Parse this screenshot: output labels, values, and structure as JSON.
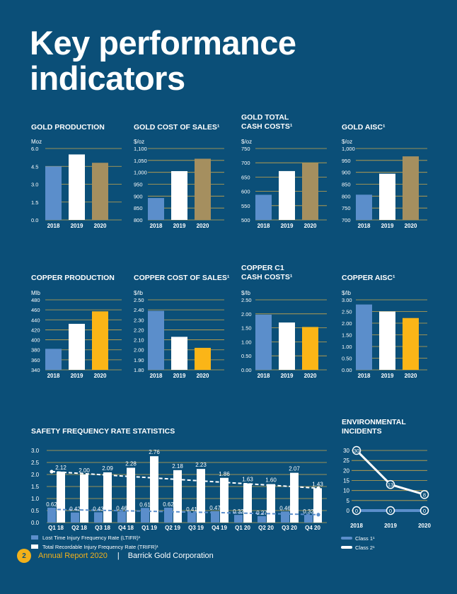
{
  "page": {
    "title_line1": "Key performance",
    "title_line2": "indicators"
  },
  "footer": {
    "page_number": "2",
    "report": "Annual Report 2020",
    "separator": "|",
    "company": "Barrick Gold Corporation"
  },
  "colors": {
    "background": "#0b4f78",
    "blue": "#5b8ecb",
    "white": "#ffffff",
    "gold_khaki": "#a58f5f",
    "copper_yellow": "#fbb517",
    "grid": "#c9a64b"
  },
  "chart_data": [
    {
      "id": "gold-production",
      "type": "bar",
      "title_lines": [
        "GOLD PRODUCTION"
      ],
      "unit": "Moz",
      "categories": [
        "2018",
        "2019",
        "2020"
      ],
      "values": [
        4.5,
        5.5,
        4.8
      ],
      "ylim": [
        0,
        6
      ],
      "ticks": [
        "6.0",
        "4.5",
        "3.0",
        "1.5",
        "0.0"
      ],
      "colors": [
        "#5b8ecb",
        "#ffffff",
        "#a58f5f"
      ]
    },
    {
      "id": "gold-cost-of-sales",
      "type": "bar",
      "title_lines": [
        "GOLD COST OF SALES¹"
      ],
      "unit": "$/oz",
      "categories": [
        "2018",
        "2019",
        "2020"
      ],
      "values": [
        892,
        1005,
        1057
      ],
      "ylim": [
        800,
        1100
      ],
      "ticks": [
        "1,100",
        "1,050",
        "1,000",
        "950",
        "900",
        "850",
        "800"
      ],
      "colors": [
        "#5b8ecb",
        "#ffffff",
        "#a58f5f"
      ]
    },
    {
      "id": "gold-total-cash-costs",
      "type": "bar",
      "title_lines": [
        "GOLD TOTAL",
        "CASH COSTS¹"
      ],
      "unit": "$/oz",
      "categories": [
        "2018",
        "2019",
        "2020"
      ],
      "values": [
        588,
        671,
        699
      ],
      "ylim": [
        500,
        750
      ],
      "ticks": [
        "750",
        "700",
        "650",
        "600",
        "550",
        "500"
      ],
      "colors": [
        "#5b8ecb",
        "#ffffff",
        "#a58f5f"
      ]
    },
    {
      "id": "gold-aisc",
      "type": "bar",
      "title_lines": [
        "GOLD AISC¹"
      ],
      "unit": "$/oz",
      "categories": [
        "2018",
        "2019",
        "2020"
      ],
      "values": [
        806,
        894,
        967
      ],
      "ylim": [
        700,
        1000
      ],
      "ticks": [
        "1,000",
        "950",
        "900",
        "850",
        "800",
        "750",
        "700"
      ],
      "colors": [
        "#5b8ecb",
        "#ffffff",
        "#a58f5f"
      ]
    },
    {
      "id": "copper-production",
      "type": "bar",
      "title_lines": [
        "COPPER PRODUCTION"
      ],
      "unit": "Mlb",
      "categories": [
        "2018",
        "2019",
        "2020"
      ],
      "values": [
        382,
        432,
        457
      ],
      "ylim": [
        340,
        480
      ],
      "ticks": [
        "480",
        "460",
        "440",
        "420",
        "400",
        "380",
        "360",
        "340"
      ],
      "colors": [
        "#5b8ecb",
        "#ffffff",
        "#fbb517"
      ]
    },
    {
      "id": "copper-cost-of-sales",
      "type": "bar",
      "title_lines": [
        "COPPER COST OF SALES¹"
      ],
      "unit": "$/lb",
      "categories": [
        "2018",
        "2019",
        "2020"
      ],
      "values": [
        2.39,
        2.13,
        2.02
      ],
      "ylim": [
        1.8,
        2.5
      ],
      "ticks": [
        "2.50",
        "2.40",
        "2.30",
        "2.20",
        "2.10",
        "2.00",
        "1.90",
        "1.80"
      ],
      "colors": [
        "#5b8ecb",
        "#ffffff",
        "#fbb517"
      ]
    },
    {
      "id": "copper-c1-cash-costs",
      "type": "bar",
      "title_lines": [
        "COPPER C1",
        "CASH COSTS¹"
      ],
      "unit": "$/lb",
      "categories": [
        "2018",
        "2019",
        "2020"
      ],
      "values": [
        1.97,
        1.69,
        1.53
      ],
      "ylim": [
        0,
        2.5
      ],
      "ticks": [
        "2.50",
        "2.00",
        "1.50",
        "1.00",
        "0.50",
        "0.00"
      ],
      "colors": [
        "#5b8ecb",
        "#ffffff",
        "#fbb517"
      ]
    },
    {
      "id": "copper-aisc",
      "type": "bar",
      "title_lines": [
        "COPPER AISC¹"
      ],
      "unit": "$/lb",
      "categories": [
        "2018",
        "2019",
        "2020"
      ],
      "values": [
        2.8,
        2.5,
        2.22
      ],
      "ylim": [
        0,
        3
      ],
      "ticks": [
        "3.00",
        "2.50",
        "2.00",
        "1.50",
        "1.00",
        "0.50",
        "0.00"
      ],
      "colors": [
        "#5b8ecb",
        "#ffffff",
        "#fbb517"
      ]
    },
    {
      "id": "safety",
      "type": "bar+line",
      "title": "SAFETY FREQUENCY RATE STATISTICS",
      "categories": [
        "Q1 18",
        "Q2 18",
        "Q3 18",
        "Q4 18",
        "Q1 19",
        "Q2 19",
        "Q3 19",
        "Q4 19",
        "Q1 20",
        "Q2 20",
        "Q3 20",
        "Q4 20"
      ],
      "ylim": [
        0,
        3
      ],
      "ticks": [
        "3.0",
        "2.5",
        "2.0",
        "1.5",
        "1.0",
        "0.5",
        "0.0"
      ],
      "series": [
        {
          "name": "Lost Time Injury Frequency Rate (LTIFR)¹",
          "color": "#5b8ecb",
          "values": [
            0.62,
            0.42,
            0.43,
            0.46,
            0.61,
            0.62,
            0.41,
            0.47,
            0.32,
            0.27,
            0.46,
            0.32
          ],
          "labels": [
            "0.62",
            "0.42",
            "0.43",
            "0.46",
            "0.61",
            "0.62",
            "0.41",
            "0.47",
            "0.32",
            "0.27",
            "0.46",
            "0.32"
          ]
        },
        {
          "name": "Total Recordable Injury Frequency Rate (TRIFR)¹",
          "color": "#ffffff",
          "values": [
            2.12,
            2.0,
            2.09,
            2.28,
            2.76,
            2.18,
            2.23,
            1.86,
            1.63,
            1.6,
            2.07,
            1.43
          ],
          "labels": [
            "2.12",
            "2.00",
            "2.09",
            "2.28",
            "2.76",
            "2.18",
            "2.23",
            "1.86",
            "1.63",
            "1.60",
            "2.07",
            "1.43"
          ]
        }
      ],
      "trend_lines": {
        "ltifr": [
          0.55,
          0.33
        ],
        "trifr": [
          2.12,
          1.43
        ]
      }
    },
    {
      "id": "environmental-incidents",
      "type": "line",
      "title_lines": [
        "ENVIRONMENTAL",
        "INCIDENTS"
      ],
      "categories": [
        "2018",
        "2019",
        "2020"
      ],
      "ylim": [
        0,
        30
      ],
      "ticks": [
        "30",
        "25",
        "20",
        "15",
        "10",
        "5",
        "0"
      ],
      "series": [
        {
          "name": "Class 1¹",
          "color": "#5b8ecb",
          "values": [
            0,
            0,
            0
          ]
        },
        {
          "name": "Class 2¹",
          "color": "#ffffff",
          "values": [
            30,
            13,
            8
          ]
        }
      ]
    }
  ]
}
